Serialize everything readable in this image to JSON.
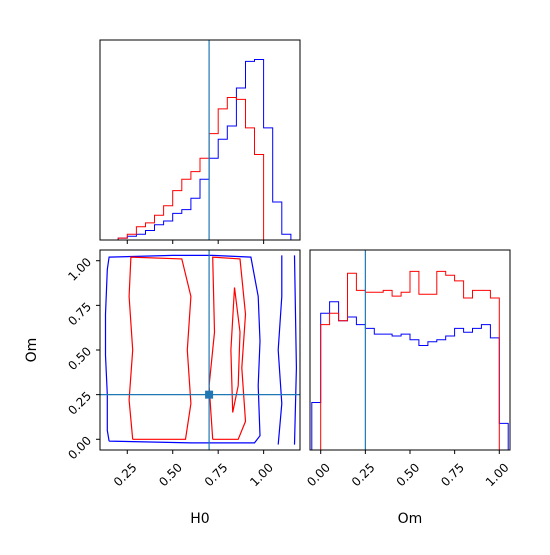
{
  "chart_data": {
    "type": "corner",
    "parameters": [
      "H0",
      "Om"
    ],
    "truth": {
      "H0": 0.7,
      "Om": 0.25,
      "color": "#1f77b4"
    },
    "colors": {
      "blue": "#0000ff",
      "red": "#ff0000",
      "truth": "#1f77b4"
    },
    "series": [
      {
        "color": "#0000ff"
      },
      {
        "color": "#ff0000"
      }
    ],
    "panels": [
      {
        "id": "hist-H0",
        "type": "histogram",
        "xlim": [
          0.1,
          1.2
        ],
        "xticks": [
          0.25,
          0.5,
          0.75,
          1.0
        ],
        "histograms": [
          {
            "color": "#0000ff",
            "edges": [
              0.1,
              0.15,
              0.2,
              0.25,
              0.3,
              0.35,
              0.4,
              0.45,
              0.5,
              0.55,
              0.6,
              0.65,
              0.7,
              0.75,
              0.8,
              0.85,
              0.9,
              0.95,
              1.0,
              1.05,
              1.1,
              1.15
            ],
            "counts": [
              0,
              0,
              0.01,
              0.02,
              0.03,
              0.05,
              0.08,
              0.1,
              0.14,
              0.16,
              0.22,
              0.32,
              0.43,
              0.53,
              0.6,
              0.8,
              0.94,
              0.95,
              0.59,
              0.2,
              0.03
            ]
          },
          {
            "color": "#ff0000",
            "edges": [
              0.1,
              0.15,
              0.2,
              0.25,
              0.3,
              0.35,
              0.4,
              0.45,
              0.5,
              0.55,
              0.6,
              0.65,
              0.7,
              0.75,
              0.8,
              0.85,
              0.9,
              0.95,
              1.0,
              1.05,
              1.1,
              1.15
            ],
            "counts": [
              0,
              0,
              0.01,
              0.03,
              0.07,
              0.09,
              0.13,
              0.18,
              0.26,
              0.32,
              0.36,
              0.43,
              0.56,
              0.69,
              0.75,
              0.74,
              0.59,
              0.45,
              0,
              0,
              0
            ]
          }
        ]
      },
      {
        "id": "contour-H0-Om",
        "type": "contour",
        "xlim": [
          0.1,
          1.2
        ],
        "ylim": [
          -0.06,
          1.06
        ],
        "xticks": [
          0.25,
          0.5,
          0.75,
          1.0
        ],
        "yticks": [
          0.0,
          0.25,
          0.5,
          0.75,
          1.0
        ],
        "contours": [
          {
            "color": "#0000ff",
            "points": [
              [
                0.15,
                -0.01
              ],
              [
                0.14,
                0.05
              ],
              [
                0.14,
                0.25
              ],
              [
                0.13,
                0.47
              ],
              [
                0.13,
                0.7
              ],
              [
                0.14,
                0.95
              ],
              [
                0.15,
                1.02
              ],
              [
                0.5,
                1.03
              ],
              [
                0.72,
                1.03
              ],
              [
                0.93,
                1.02
              ],
              [
                0.97,
                0.8
              ],
              [
                0.98,
                0.55
              ],
              [
                0.97,
                0.3
              ],
              [
                0.98,
                0.02
              ],
              [
                0.95,
                -0.02
              ],
              [
                0.6,
                -0.02
              ],
              [
                0.15,
                -0.01
              ]
            ]
          },
          {
            "color": "#0000ff",
            "points": [
              [
                1.08,
                -0.03
              ],
              [
                1.1,
                0.2
              ],
              [
                1.08,
                0.5
              ],
              [
                1.1,
                0.8
              ],
              [
                1.1,
                1.03
              ]
            ]
          },
          {
            "color": "#0000ff",
            "points": [
              [
                1.17,
                -0.03
              ],
              [
                1.18,
                0.4
              ],
              [
                1.17,
                1.03
              ]
            ]
          },
          {
            "color": "#ff0000",
            "points": [
              [
                0.28,
                0.0
              ],
              [
                0.26,
                0.22
              ],
              [
                0.28,
                0.5
              ],
              [
                0.26,
                0.8
              ],
              [
                0.27,
                1.02
              ],
              [
                0.55,
                1.01
              ],
              [
                0.6,
                0.8
              ],
              [
                0.58,
                0.5
              ],
              [
                0.6,
                0.2
              ],
              [
                0.57,
                0.0
              ],
              [
                0.28,
                0.0
              ]
            ]
          },
          {
            "color": "#ff0000",
            "points": [
              [
                0.72,
                0.0
              ],
              [
                0.7,
                0.3
              ],
              [
                0.73,
                0.6
              ],
              [
                0.72,
                1.02
              ],
              [
                0.87,
                1.01
              ],
              [
                0.9,
                0.7
              ],
              [
                0.88,
                0.4
              ],
              [
                0.9,
                0.1
              ],
              [
                0.86,
                0.0
              ],
              [
                0.72,
                0.0
              ]
            ]
          },
          {
            "color": "#ff0000",
            "points": [
              [
                0.83,
                0.15
              ],
              [
                0.82,
                0.5
              ],
              [
                0.84,
                0.85
              ],
              [
                0.87,
                0.6
              ],
              [
                0.86,
                0.3
              ],
              [
                0.83,
                0.15
              ]
            ]
          }
        ]
      },
      {
        "id": "hist-Om",
        "type": "histogram",
        "xlim": [
          -0.06,
          1.06
        ],
        "xticks": [
          0.0,
          0.25,
          0.5,
          0.75,
          1.0
        ],
        "histograms": [
          {
            "color": "#0000ff",
            "edges": [
              -0.05,
              0.0,
              0.05,
              0.1,
              0.15,
              0.2,
              0.25,
              0.3,
              0.35,
              0.4,
              0.45,
              0.5,
              0.55,
              0.6,
              0.65,
              0.7,
              0.75,
              0.8,
              0.85,
              0.9,
              0.95,
              1.0,
              1.05
            ],
            "counts": [
              0.25,
              0.72,
              0.78,
              0.68,
              0.7,
              0.66,
              0.64,
              0.61,
              0.61,
              0.6,
              0.61,
              0.58,
              0.55,
              0.57,
              0.58,
              0.6,
              0.64,
              0.62,
              0.64,
              0.66,
              0.59,
              0.14
            ]
          },
          {
            "color": "#ff0000",
            "edges": [
              -0.05,
              0.0,
              0.05,
              0.1,
              0.15,
              0.2,
              0.25,
              0.3,
              0.35,
              0.4,
              0.45,
              0.5,
              0.55,
              0.6,
              0.65,
              0.7,
              0.75,
              0.8,
              0.85,
              0.9,
              0.95,
              1.0,
              1.05
            ],
            "counts": [
              0,
              0.66,
              0.72,
              0.68,
              0.93,
              0.84,
              0.83,
              0.83,
              0.84,
              0.81,
              0.83,
              0.94,
              0.82,
              0.82,
              0.94,
              0.92,
              0.89,
              0.8,
              0.84,
              0.84,
              0.8,
              0
            ]
          }
        ]
      }
    ],
    "xlabels": [
      "H0",
      "Om"
    ],
    "ylabel": "Om",
    "tick_labels": {
      "H0": [
        "0.25",
        "0.50",
        "0.75",
        "1.00"
      ],
      "Om_x": [
        "0.00",
        "0.25",
        "0.50",
        "0.75",
        "1.00"
      ],
      "Om_y": [
        "0.00",
        "0.25",
        "0.50",
        "0.75",
        "1.00"
      ]
    }
  }
}
